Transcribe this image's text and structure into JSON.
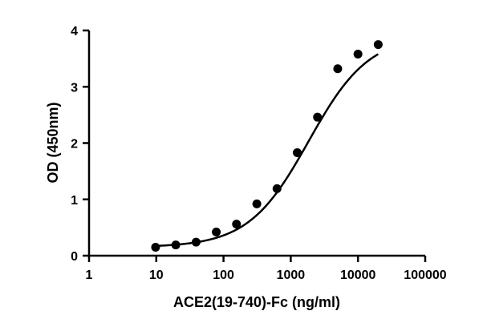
{
  "chart_data": {
    "type": "scatter",
    "title": "",
    "xlabel": "ACE2(19-740)-Fc (ng/ml)",
    "ylabel": "OD (450nm)",
    "x_scale": "log",
    "xlim": [
      1,
      100000
    ],
    "ylim": [
      0,
      4
    ],
    "x_ticks": [
      1,
      10,
      100,
      1000,
      10000,
      100000
    ],
    "x_tick_labels": [
      "1",
      "10",
      "100",
      "1000",
      "10000",
      "100000"
    ],
    "y_ticks": [
      0,
      1,
      2,
      3,
      4
    ],
    "y_tick_labels": [
      "0",
      "1",
      "2",
      "3",
      "4"
    ],
    "grid": false,
    "marker_color": "#000000",
    "series": [
      {
        "x": [
          9.77,
          19.5,
          39.1,
          78.1,
          156,
          313,
          625,
          1250,
          2500,
          5000,
          10000,
          20000
        ],
        "y": [
          0.15,
          0.19,
          0.24,
          0.42,
          0.56,
          0.92,
          1.19,
          1.83,
          2.46,
          3.32,
          3.58,
          3.75
        ]
      }
    ],
    "fit_curve": {
      "type": "4PL",
      "bottom": 0.15,
      "top": 3.92,
      "ec50": 1850,
      "hill": 0.97,
      "x_range": [
        9.77,
        20000
      ]
    }
  }
}
